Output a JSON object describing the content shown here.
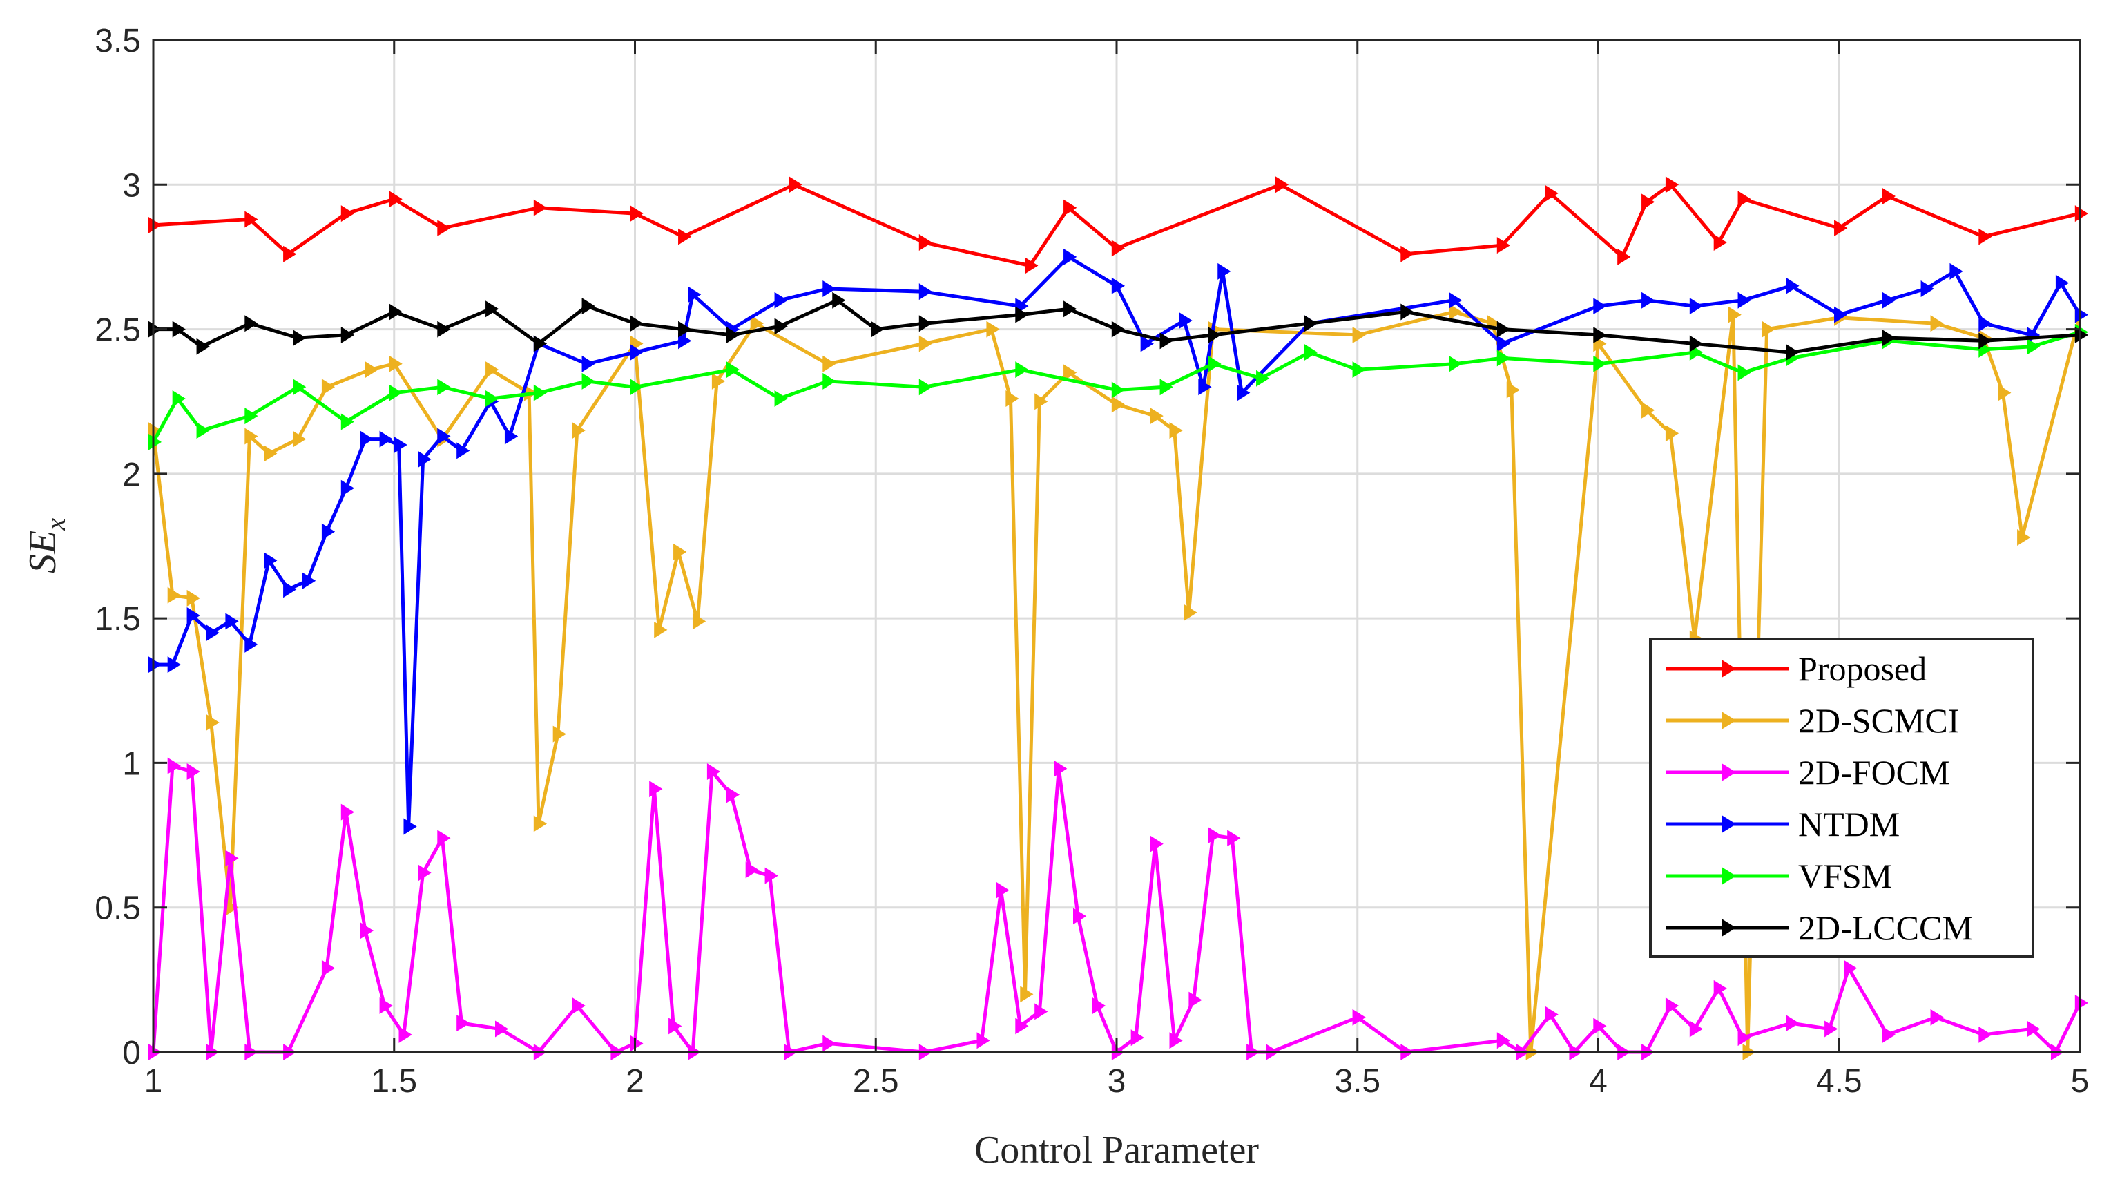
{
  "chart_data": {
    "type": "line",
    "xlabel": "Control Parameter",
    "ylabel": "SE",
    "ylabel_subscript": "x",
    "xlim": [
      1,
      5
    ],
    "ylim": [
      0,
      3.5
    ],
    "xticks": [
      "1",
      "1.5",
      "2",
      "2.5",
      "3",
      "3.5",
      "4",
      "4.5",
      "5"
    ],
    "yticks": [
      "0",
      "0.5",
      "1",
      "1.5",
      "2",
      "2.5",
      "3",
      "3.5"
    ],
    "grid": true,
    "legend_position": "bottom-right",
    "marker": "right-pointing-triangle",
    "series": [
      {
        "name": "Proposed",
        "color": "#ff0000",
        "x": [
          1,
          1.2,
          1.28,
          1.4,
          1.5,
          1.6,
          1.8,
          2,
          2.1,
          2.33,
          2.6,
          2.82,
          2.9,
          3.0,
          3.34,
          3.6,
          3.8,
          3.9,
          4.05,
          4.1,
          4.15,
          4.25,
          4.3,
          4.5,
          4.6,
          4.8,
          5
        ],
        "values": [
          2.86,
          2.88,
          2.76,
          2.9,
          2.95,
          2.85,
          2.92,
          2.9,
          2.82,
          3.0,
          2.8,
          2.72,
          2.92,
          2.78,
          3.0,
          2.76,
          2.79,
          2.97,
          2.75,
          2.94,
          3.0,
          2.8,
          2.95,
          2.85,
          2.96,
          2.82,
          2.9
        ]
      },
      {
        "name": "2D-SCMCI",
        "color": "#edb120",
        "x": [
          1,
          1.04,
          1.08,
          1.12,
          1.16,
          1.2,
          1.24,
          1.3,
          1.36,
          1.45,
          1.5,
          1.6,
          1.7,
          1.78,
          1.8,
          1.84,
          1.88,
          2.0,
          2.05,
          2.09,
          2.13,
          2.17,
          2.25,
          2.4,
          2.6,
          2.74,
          2.78,
          2.81,
          2.84,
          2.9,
          3.0,
          3.08,
          3.12,
          3.15,
          3.2,
          3.5,
          3.7,
          3.78,
          3.82,
          3.86,
          4.0,
          4.1,
          4.15,
          4.2,
          4.28,
          4.31,
          4.35,
          4.5,
          4.7,
          4.8,
          4.84,
          4.88,
          5
        ],
        "values": [
          2.15,
          1.58,
          1.57,
          1.14,
          0.5,
          2.13,
          2.07,
          2.12,
          2.3,
          2.36,
          2.38,
          2.12,
          2.36,
          2.28,
          0.79,
          1.1,
          2.15,
          2.45,
          1.46,
          1.73,
          1.49,
          2.32,
          2.52,
          2.38,
          2.45,
          2.5,
          2.26,
          0.2,
          2.25,
          2.35,
          2.24,
          2.2,
          2.15,
          1.52,
          2.5,
          2.48,
          2.56,
          2.52,
          2.29,
          0.0,
          2.45,
          2.22,
          2.14,
          1.43,
          2.55,
          0.0,
          2.5,
          2.54,
          2.52,
          2.47,
          2.28,
          1.78,
          2.55
        ]
      },
      {
        "name": "2D-FOCM",
        "color": "#ff00ff",
        "x": [
          1,
          1.04,
          1.08,
          1.12,
          1.16,
          1.2,
          1.28,
          1.36,
          1.4,
          1.44,
          1.48,
          1.52,
          1.56,
          1.6,
          1.64,
          1.72,
          1.8,
          1.88,
          1.96,
          2.0,
          2.04,
          2.08,
          2.12,
          2.16,
          2.2,
          2.24,
          2.28,
          2.32,
          2.4,
          2.6,
          2.72,
          2.76,
          2.8,
          2.84,
          2.88,
          2.92,
          2.96,
          3.0,
          3.04,
          3.08,
          3.12,
          3.16,
          3.2,
          3.24,
          3.28,
          3.32,
          3.5,
          3.6,
          3.8,
          3.84,
          3.9,
          3.95,
          4.0,
          4.05,
          4.1,
          4.15,
          4.2,
          4.25,
          4.3,
          4.4,
          4.48,
          4.52,
          4.6,
          4.7,
          4.8,
          4.9,
          4.95,
          5
        ],
        "values": [
          0.0,
          0.99,
          0.97,
          0.0,
          0.67,
          0.0,
          0.0,
          0.29,
          0.83,
          0.42,
          0.16,
          0.06,
          0.62,
          0.74,
          0.1,
          0.08,
          0.0,
          0.16,
          0.0,
          0.03,
          0.91,
          0.09,
          0.0,
          0.97,
          0.89,
          0.63,
          0.61,
          0.0,
          0.03,
          0.0,
          0.04,
          0.56,
          0.09,
          0.14,
          0.98,
          0.47,
          0.16,
          0.0,
          0.05,
          0.72,
          0.04,
          0.18,
          0.75,
          0.74,
          0.0,
          0.0,
          0.12,
          0.0,
          0.04,
          0.0,
          0.13,
          0.0,
          0.09,
          0.0,
          0.0,
          0.16,
          0.08,
          0.22,
          0.05,
          0.1,
          0.08,
          0.29,
          0.06,
          0.12,
          0.06,
          0.08,
          0.0,
          0.17
        ]
      },
      {
        "name": "NTDM",
        "color": "#0000ff",
        "x": [
          1,
          1.04,
          1.08,
          1.12,
          1.16,
          1.2,
          1.24,
          1.28,
          1.32,
          1.36,
          1.4,
          1.44,
          1.48,
          1.51,
          1.53,
          1.56,
          1.6,
          1.64,
          1.7,
          1.74,
          1.8,
          1.9,
          2.0,
          2.1,
          2.12,
          2.2,
          2.3,
          2.4,
          2.6,
          2.8,
          2.9,
          3.0,
          3.06,
          3.14,
          3.18,
          3.22,
          3.26,
          3.4,
          3.7,
          3.8,
          4.0,
          4.1,
          4.2,
          4.3,
          4.4,
          4.5,
          4.6,
          4.68,
          4.74,
          4.8,
          4.9,
          4.96,
          5
        ],
        "values": [
          1.34,
          1.34,
          1.51,
          1.45,
          1.49,
          1.41,
          1.7,
          1.6,
          1.63,
          1.8,
          1.95,
          2.12,
          2.12,
          2.1,
          0.78,
          2.05,
          2.13,
          2.08,
          2.25,
          2.13,
          2.45,
          2.38,
          2.42,
          2.46,
          2.62,
          2.5,
          2.6,
          2.64,
          2.63,
          2.58,
          2.75,
          2.65,
          2.45,
          2.53,
          2.3,
          2.7,
          2.28,
          2.52,
          2.6,
          2.45,
          2.58,
          2.6,
          2.58,
          2.6,
          2.65,
          2.55,
          2.6,
          2.64,
          2.7,
          2.52,
          2.48,
          2.66,
          2.55
        ]
      },
      {
        "name": "VFSM",
        "color": "#00ff00",
        "x": [
          1,
          1.05,
          1.1,
          1.2,
          1.3,
          1.4,
          1.5,
          1.6,
          1.7,
          1.8,
          1.9,
          2.0,
          2.2,
          2.3,
          2.4,
          2.6,
          2.8,
          3.0,
          3.1,
          3.2,
          3.3,
          3.4,
          3.5,
          3.7,
          3.8,
          4.0,
          4.2,
          4.3,
          4.4,
          4.6,
          4.8,
          4.9,
          5
        ],
        "values": [
          2.11,
          2.26,
          2.15,
          2.2,
          2.3,
          2.18,
          2.28,
          2.3,
          2.26,
          2.28,
          2.32,
          2.3,
          2.36,
          2.26,
          2.32,
          2.3,
          2.36,
          2.29,
          2.3,
          2.38,
          2.33,
          2.42,
          2.36,
          2.38,
          2.4,
          2.38,
          2.42,
          2.35,
          2.4,
          2.46,
          2.43,
          2.44,
          2.49
        ]
      },
      {
        "name": "2D-LCCCM",
        "color": "#000000",
        "x": [
          1,
          1.05,
          1.1,
          1.2,
          1.3,
          1.4,
          1.5,
          1.6,
          1.7,
          1.8,
          1.9,
          2.0,
          2.1,
          2.2,
          2.3,
          2.42,
          2.5,
          2.6,
          2.8,
          2.9,
          3.0,
          3.1,
          3.2,
          3.4,
          3.6,
          3.8,
          4.0,
          4.2,
          4.4,
          4.6,
          4.8,
          5
        ],
        "values": [
          2.5,
          2.5,
          2.44,
          2.52,
          2.47,
          2.48,
          2.56,
          2.5,
          2.57,
          2.45,
          2.58,
          2.52,
          2.5,
          2.48,
          2.51,
          2.6,
          2.5,
          2.52,
          2.55,
          2.57,
          2.5,
          2.46,
          2.48,
          2.52,
          2.56,
          2.5,
          2.48,
          2.45,
          2.42,
          2.47,
          2.46,
          2.48
        ]
      }
    ]
  }
}
